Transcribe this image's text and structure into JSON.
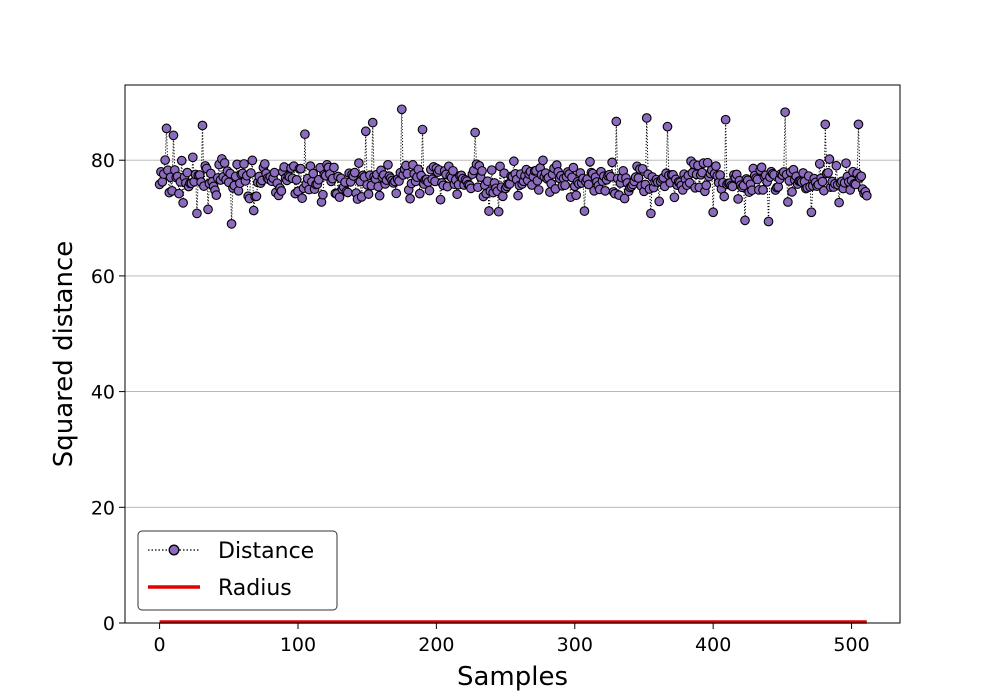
{
  "chart_data": {
    "type": "scatter",
    "title": "",
    "xlabel": "Samples",
    "ylabel": "Squared distance",
    "xlim": [
      -25,
      535
    ],
    "ylim": [
      0,
      93
    ],
    "xticks": [
      0,
      100,
      200,
      300,
      400,
      500
    ],
    "yticks": [
      0,
      20,
      40,
      60,
      80
    ],
    "grid": "y",
    "legend_position": "lower-left",
    "colors": {
      "distance": "#8c6bbf",
      "radius": "#e00000",
      "grid": "#b0b0b0"
    },
    "n_samples": 512,
    "series": [
      {
        "name": "Distance",
        "style": "dotted-line-with-markers",
        "summary": {
          "center": 76.5,
          "min": 69,
          "max": 88.8
        },
        "peaks": [
          {
            "x": 5,
            "y": 85.5
          },
          {
            "x": 10,
            "y": 84.3
          },
          {
            "x": 31,
            "y": 86.0
          },
          {
            "x": 105,
            "y": 84.5
          },
          {
            "x": 149,
            "y": 85.0
          },
          {
            "x": 154,
            "y": 86.5
          },
          {
            "x": 175,
            "y": 88.8
          },
          {
            "x": 190,
            "y": 85.3
          },
          {
            "x": 228,
            "y": 84.8
          },
          {
            "x": 330,
            "y": 86.7
          },
          {
            "x": 352,
            "y": 87.3
          },
          {
            "x": 367,
            "y": 85.8
          },
          {
            "x": 409,
            "y": 87.0
          },
          {
            "x": 452,
            "y": 88.3
          },
          {
            "x": 481,
            "y": 86.2
          },
          {
            "x": 505,
            "y": 86.2
          }
        ],
        "troughs": [
          {
            "x": 27,
            "y": 70.8
          },
          {
            "x": 52,
            "y": 69.0
          },
          {
            "x": 68,
            "y": 71.3
          },
          {
            "x": 238,
            "y": 71.2
          },
          {
            "x": 245,
            "y": 71.1
          },
          {
            "x": 307,
            "y": 71.2
          },
          {
            "x": 355,
            "y": 70.8
          },
          {
            "x": 400,
            "y": 71.0
          },
          {
            "x": 423,
            "y": 69.6
          },
          {
            "x": 440,
            "y": 69.4
          },
          {
            "x": 471,
            "y": 71.0
          }
        ]
      },
      {
        "name": "Radius",
        "style": "solid-line",
        "x": [
          0,
          511
        ],
        "y": [
          0,
          0
        ]
      }
    ]
  }
}
